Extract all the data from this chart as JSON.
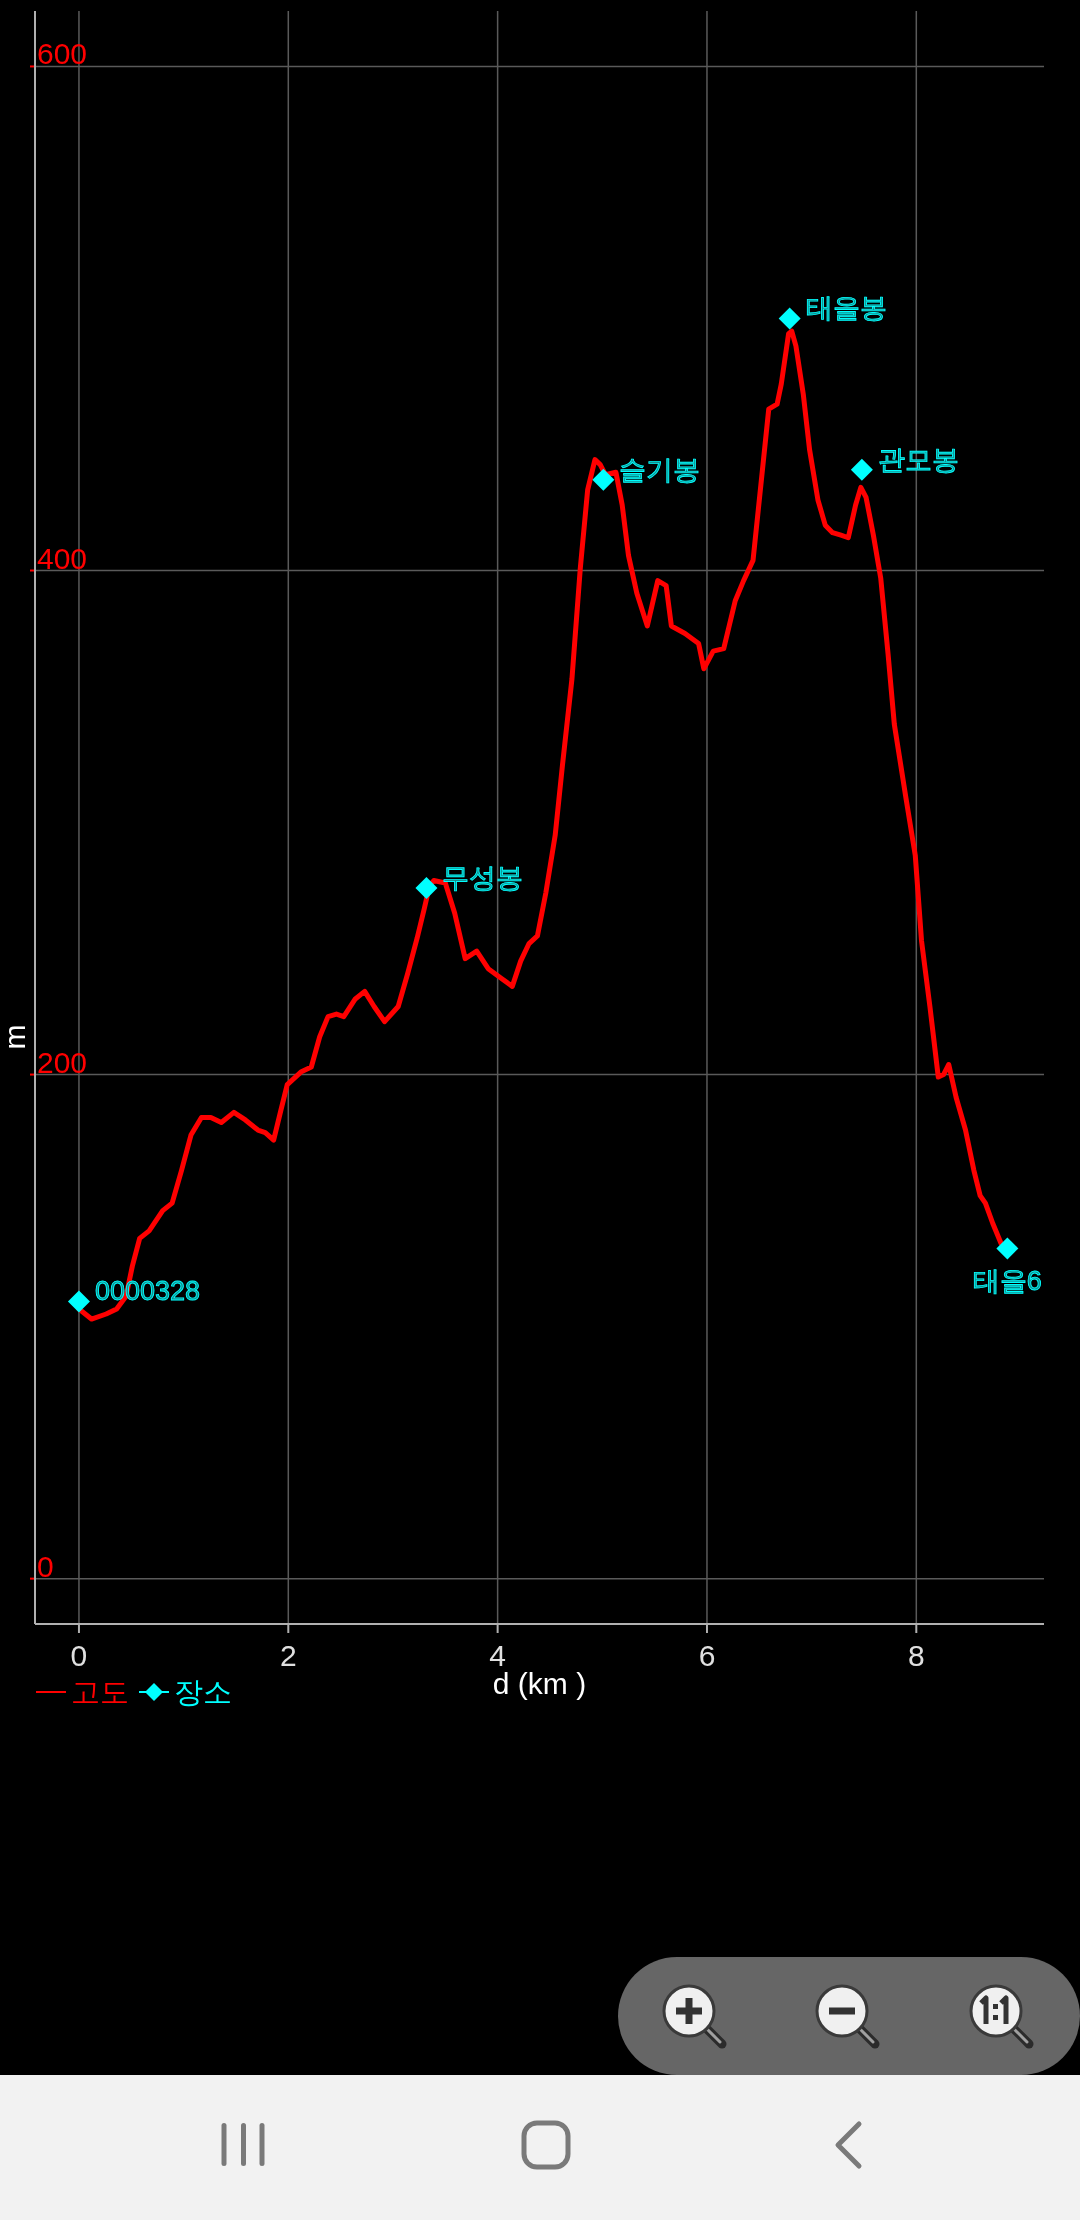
{
  "chart_data": {
    "type": "line",
    "xlabel": "d (km )",
    "ylabel": "m",
    "xlim": [
      -0.42,
      9.22
    ],
    "ylim": [
      -18,
      622
    ],
    "xticks": [
      0,
      2,
      4,
      6,
      8
    ],
    "yticks": [
      0,
      200,
      400,
      600
    ],
    "grid": true,
    "legend": "bottom left",
    "series": [
      {
        "name": "고도",
        "color": "#ff0000",
        "x": [
          0,
          0.12,
          0.26,
          0.36,
          0.45,
          0.51,
          0.58,
          0.67,
          0.8,
          0.89,
          0.98,
          1.07,
          1.17,
          1.26,
          1.36,
          1.48,
          1.59,
          1.71,
          1.78,
          1.86,
          1.93,
          1.99,
          2.12,
          2.22,
          2.3,
          2.38,
          2.46,
          2.53,
          2.64,
          2.73,
          2.82,
          2.92,
          3.05,
          3.14,
          3.23,
          3.3,
          3.35,
          3.39,
          3.5,
          3.59,
          3.69,
          3.8,
          3.91,
          4.04,
          4.14,
          4.22,
          4.3,
          4.38,
          4.46,
          4.55,
          4.62,
          4.71,
          4.79,
          4.86,
          4.93,
          4.98,
          5.03,
          5.13,
          5.19,
          5.25,
          5.33,
          5.43,
          5.53,
          5.61,
          5.66,
          5.79,
          5.92,
          5.97,
          6.06,
          6.16,
          6.27,
          6.35,
          6.44,
          6.49,
          6.59,
          6.67,
          6.71,
          6.78,
          6.81,
          6.85,
          6.92,
          6.98,
          7.06,
          7.13,
          7.2,
          7.28,
          7.35,
          7.42,
          7.47,
          7.52,
          7.59,
          7.66,
          7.73,
          7.79,
          7.9,
          7.99,
          8.05,
          8.13,
          8.21,
          8.26,
          8.31,
          8.38,
          8.47,
          8.55,
          8.61,
          8.66,
          8.73,
          8.81,
          8.87
        ],
        "values": [
          107,
          103,
          105,
          107,
          112,
          124,
          135,
          138,
          146,
          149,
          162,
          176,
          183,
          183,
          181,
          185,
          182,
          178,
          177,
          174,
          186,
          196,
          201,
          203,
          215,
          223,
          224,
          223,
          230,
          233,
          227,
          221,
          227,
          240,
          254,
          266,
          275,
          277,
          276,
          264,
          246,
          249,
          242,
          238,
          235,
          245,
          252,
          255,
          272,
          295,
          323,
          357,
          401,
          432,
          444,
          442,
          438,
          439,
          426,
          406,
          391,
          378,
          396,
          394,
          378,
          375,
          371,
          361,
          368,
          369,
          388,
          396,
          404,
          424,
          464,
          466,
          474,
          494,
          495,
          489,
          470,
          448,
          428,
          418,
          415,
          414,
          413,
          426,
          433,
          429,
          414,
          397,
          367,
          339,
          310,
          287,
          253,
          227,
          199,
          200,
          204,
          191,
          178,
          162,
          152,
          149,
          141,
          133,
          131
        ]
      },
      {
        "name": "장소",
        "type": "scatter",
        "color": "#00ffff",
        "marker": "diamond",
        "x": [
          0,
          3.32,
          5.01,
          6.79,
          7.48,
          8.87
        ],
        "values": [
          110,
          274,
          436,
          500,
          440,
          131
        ]
      }
    ],
    "annotations": [
      {
        "text": "0000328",
        "x": 0,
        "y": 110
      },
      {
        "text": "무성봉",
        "x": 3.32,
        "y": 274
      },
      {
        "text": "슬기봉",
        "x": 5.01,
        "y": 436
      },
      {
        "text": "태을봉",
        "x": 6.79,
        "y": 500
      },
      {
        "text": "관모봉",
        "x": 7.48,
        "y": 440
      },
      {
        "text": "태을6",
        "x": 8.87,
        "y": 131
      }
    ]
  }
}
